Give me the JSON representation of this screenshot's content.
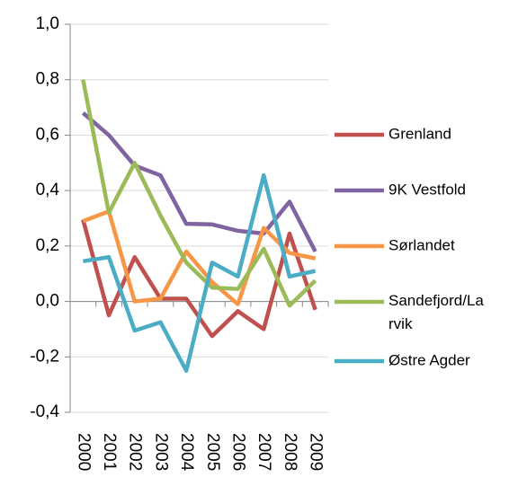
{
  "chart_data": {
    "type": "line",
    "categories": [
      "2000",
      "2001",
      "2002",
      "2003",
      "2004",
      "2005",
      "2006",
      "2007",
      "2008",
      "2009"
    ],
    "series": [
      {
        "name": "Grenland",
        "color": "#c0504d",
        "values": [
          0.295,
          -0.05,
          0.16,
          0.01,
          0.01,
          -0.125,
          -0.035,
          -0.1,
          0.245,
          -0.03
        ]
      },
      {
        "name": "9K Vestfold",
        "color": "#8064a2",
        "values": [
          0.68,
          0.6,
          0.49,
          0.455,
          0.28,
          0.278,
          0.255,
          0.245,
          0.36,
          0.18
        ]
      },
      {
        "name": "Sørlandet",
        "color": "#f79646",
        "values": [
          0.29,
          0.325,
          0.0,
          0.01,
          0.18,
          0.07,
          -0.01,
          0.265,
          0.175,
          0.155
        ]
      },
      {
        "name": "Sandefjord/Larvik",
        "color": "#9bbb59",
        "values": [
          0.8,
          0.32,
          0.5,
          0.31,
          0.14,
          0.05,
          0.045,
          0.19,
          -0.015,
          0.075
        ]
      },
      {
        "name": "Østre Agder",
        "color": "#4bacc6",
        "values": [
          0.145,
          0.16,
          -0.105,
          -0.075,
          -0.25,
          0.14,
          0.09,
          0.455,
          0.09,
          0.11
        ]
      }
    ],
    "ylim": [
      -0.4,
      1.0
    ],
    "yticks": [
      {
        "value": -0.4,
        "label": "-0,4"
      },
      {
        "value": -0.2,
        "label": "-0,2"
      },
      {
        "value": 0,
        "label": "0,0"
      },
      {
        "value": 0.2,
        "label": "0,2"
      },
      {
        "value": 0.4,
        "label": "0,4"
      },
      {
        "value": 0.6,
        "label": "0,6"
      },
      {
        "value": 0.8,
        "label": "0,8"
      },
      {
        "value": 1.0,
        "label": "1,0"
      }
    ],
    "grid": true,
    "legend": "right"
  }
}
